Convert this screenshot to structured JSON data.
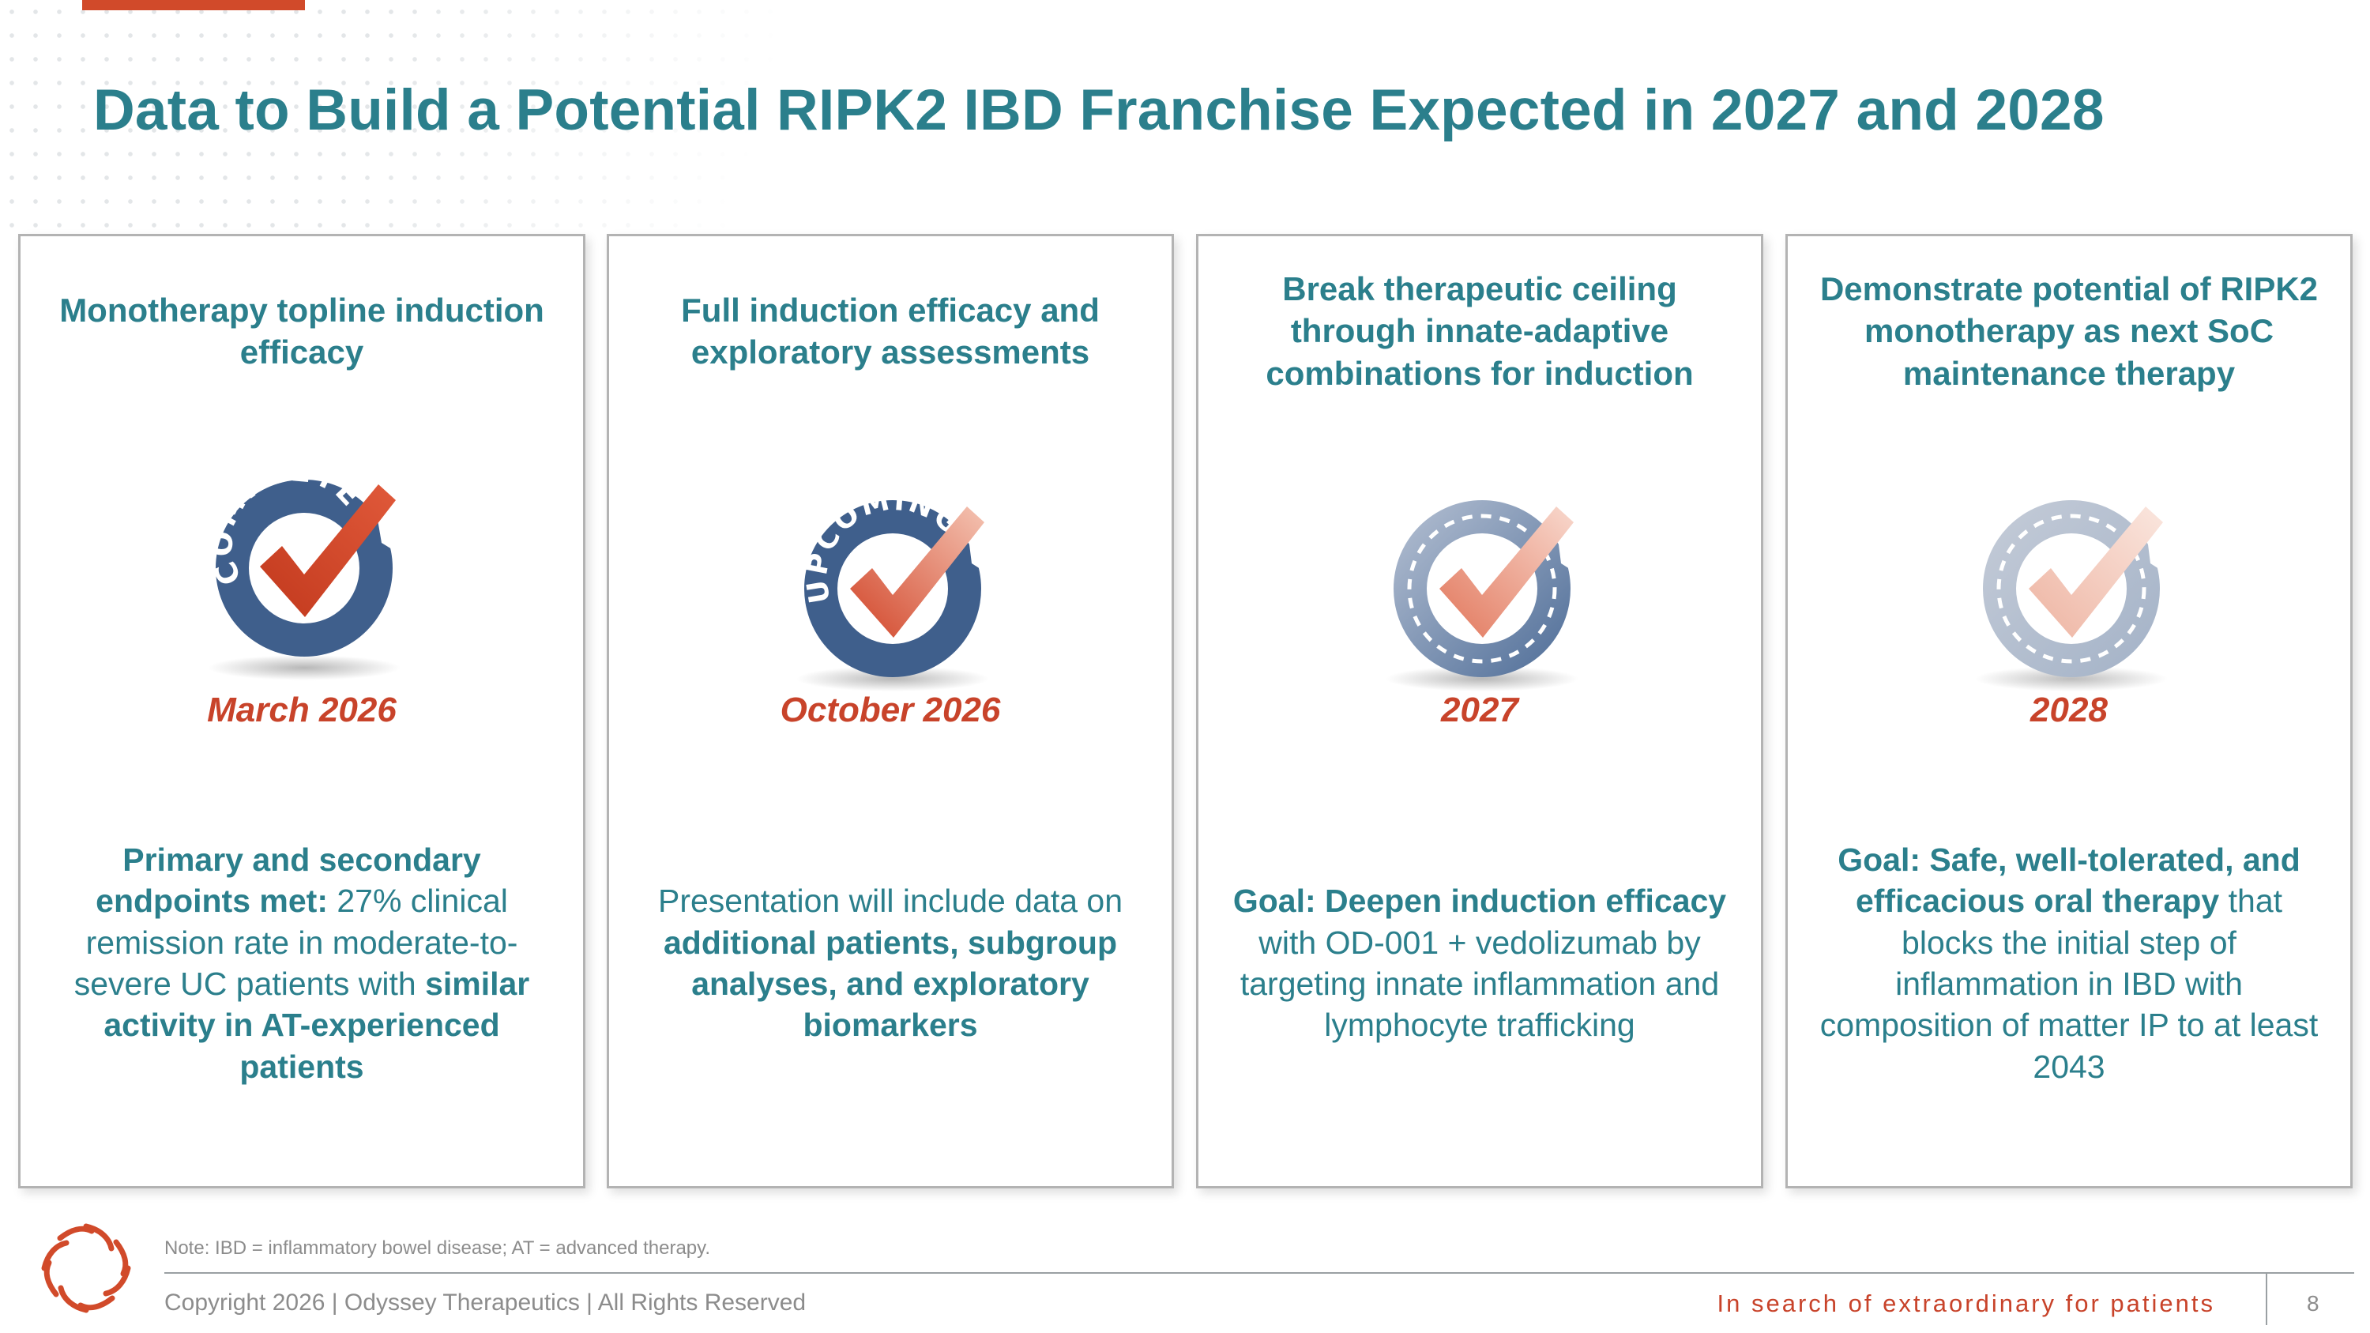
{
  "slide": {
    "title": "Data to Build a Potential RIPK2 IBD Franchise Expected in 2027 and 2028",
    "brand_colors": {
      "teal": "#2b7f8c",
      "accent_red": "#c8432a",
      "navy": "#3f5f8c"
    }
  },
  "cards": [
    {
      "heading": "Monotherapy topline induction efficacy",
      "badge_icon": "completed-check-icon",
      "badge_text": "COMPLETED",
      "date": "March 2026",
      "body": [
        {
          "t": "Primary and secondary endpoints met:",
          "b": true
        },
        {
          "t": " 27% clinical remission rate in moderate-to-severe UC patients with ",
          "b": false
        },
        {
          "t": "similar activity in AT-experienced patients",
          "b": true
        }
      ]
    },
    {
      "heading": "Full induction efficacy and exploratory assessments",
      "badge_icon": "upcoming-check-icon",
      "badge_text": "UPCOMING",
      "date": "October 2026",
      "body": [
        {
          "t": "Presentation will include data on ",
          "b": false
        },
        {
          "t": "additional patients, subgroup analyses, and exploratory biomarkers",
          "b": true
        }
      ]
    },
    {
      "heading": "Break therapeutic ceiling through innate-adaptive combinations for induction",
      "badge_icon": "future-check-icon",
      "badge_text": "",
      "date": "2027",
      "body": [
        {
          "t": "Goal: Deepen induction efficacy",
          "b": true
        },
        {
          "t": " with OD-001 + vedolizumab by targeting innate inflammation and lymphocyte trafficking",
          "b": false
        }
      ]
    },
    {
      "heading": "Demonstrate potential of RIPK2 monotherapy as next SoC maintenance therapy",
      "badge_icon": "future-check-faded-icon",
      "badge_text": "",
      "date": "2028",
      "body": [
        {
          "t": "Goal: Safe, well-tolerated, and efficacious oral therapy",
          "b": true
        },
        {
          "t": " that blocks the initial step of inflammation in IBD with composition of matter IP to at least 2043",
          "b": false
        }
      ]
    }
  ],
  "footer": {
    "note": "Note: IBD = inflammatory bowel disease; AT = advanced therapy.",
    "copyright": "Copyright 2026  |  Odyssey Therapeutics  |  All Rights Reserved",
    "tagline": "In search of extraordinary for patients",
    "page_number": "8",
    "logo_icon": "odyssey-swirl-logo-icon"
  }
}
